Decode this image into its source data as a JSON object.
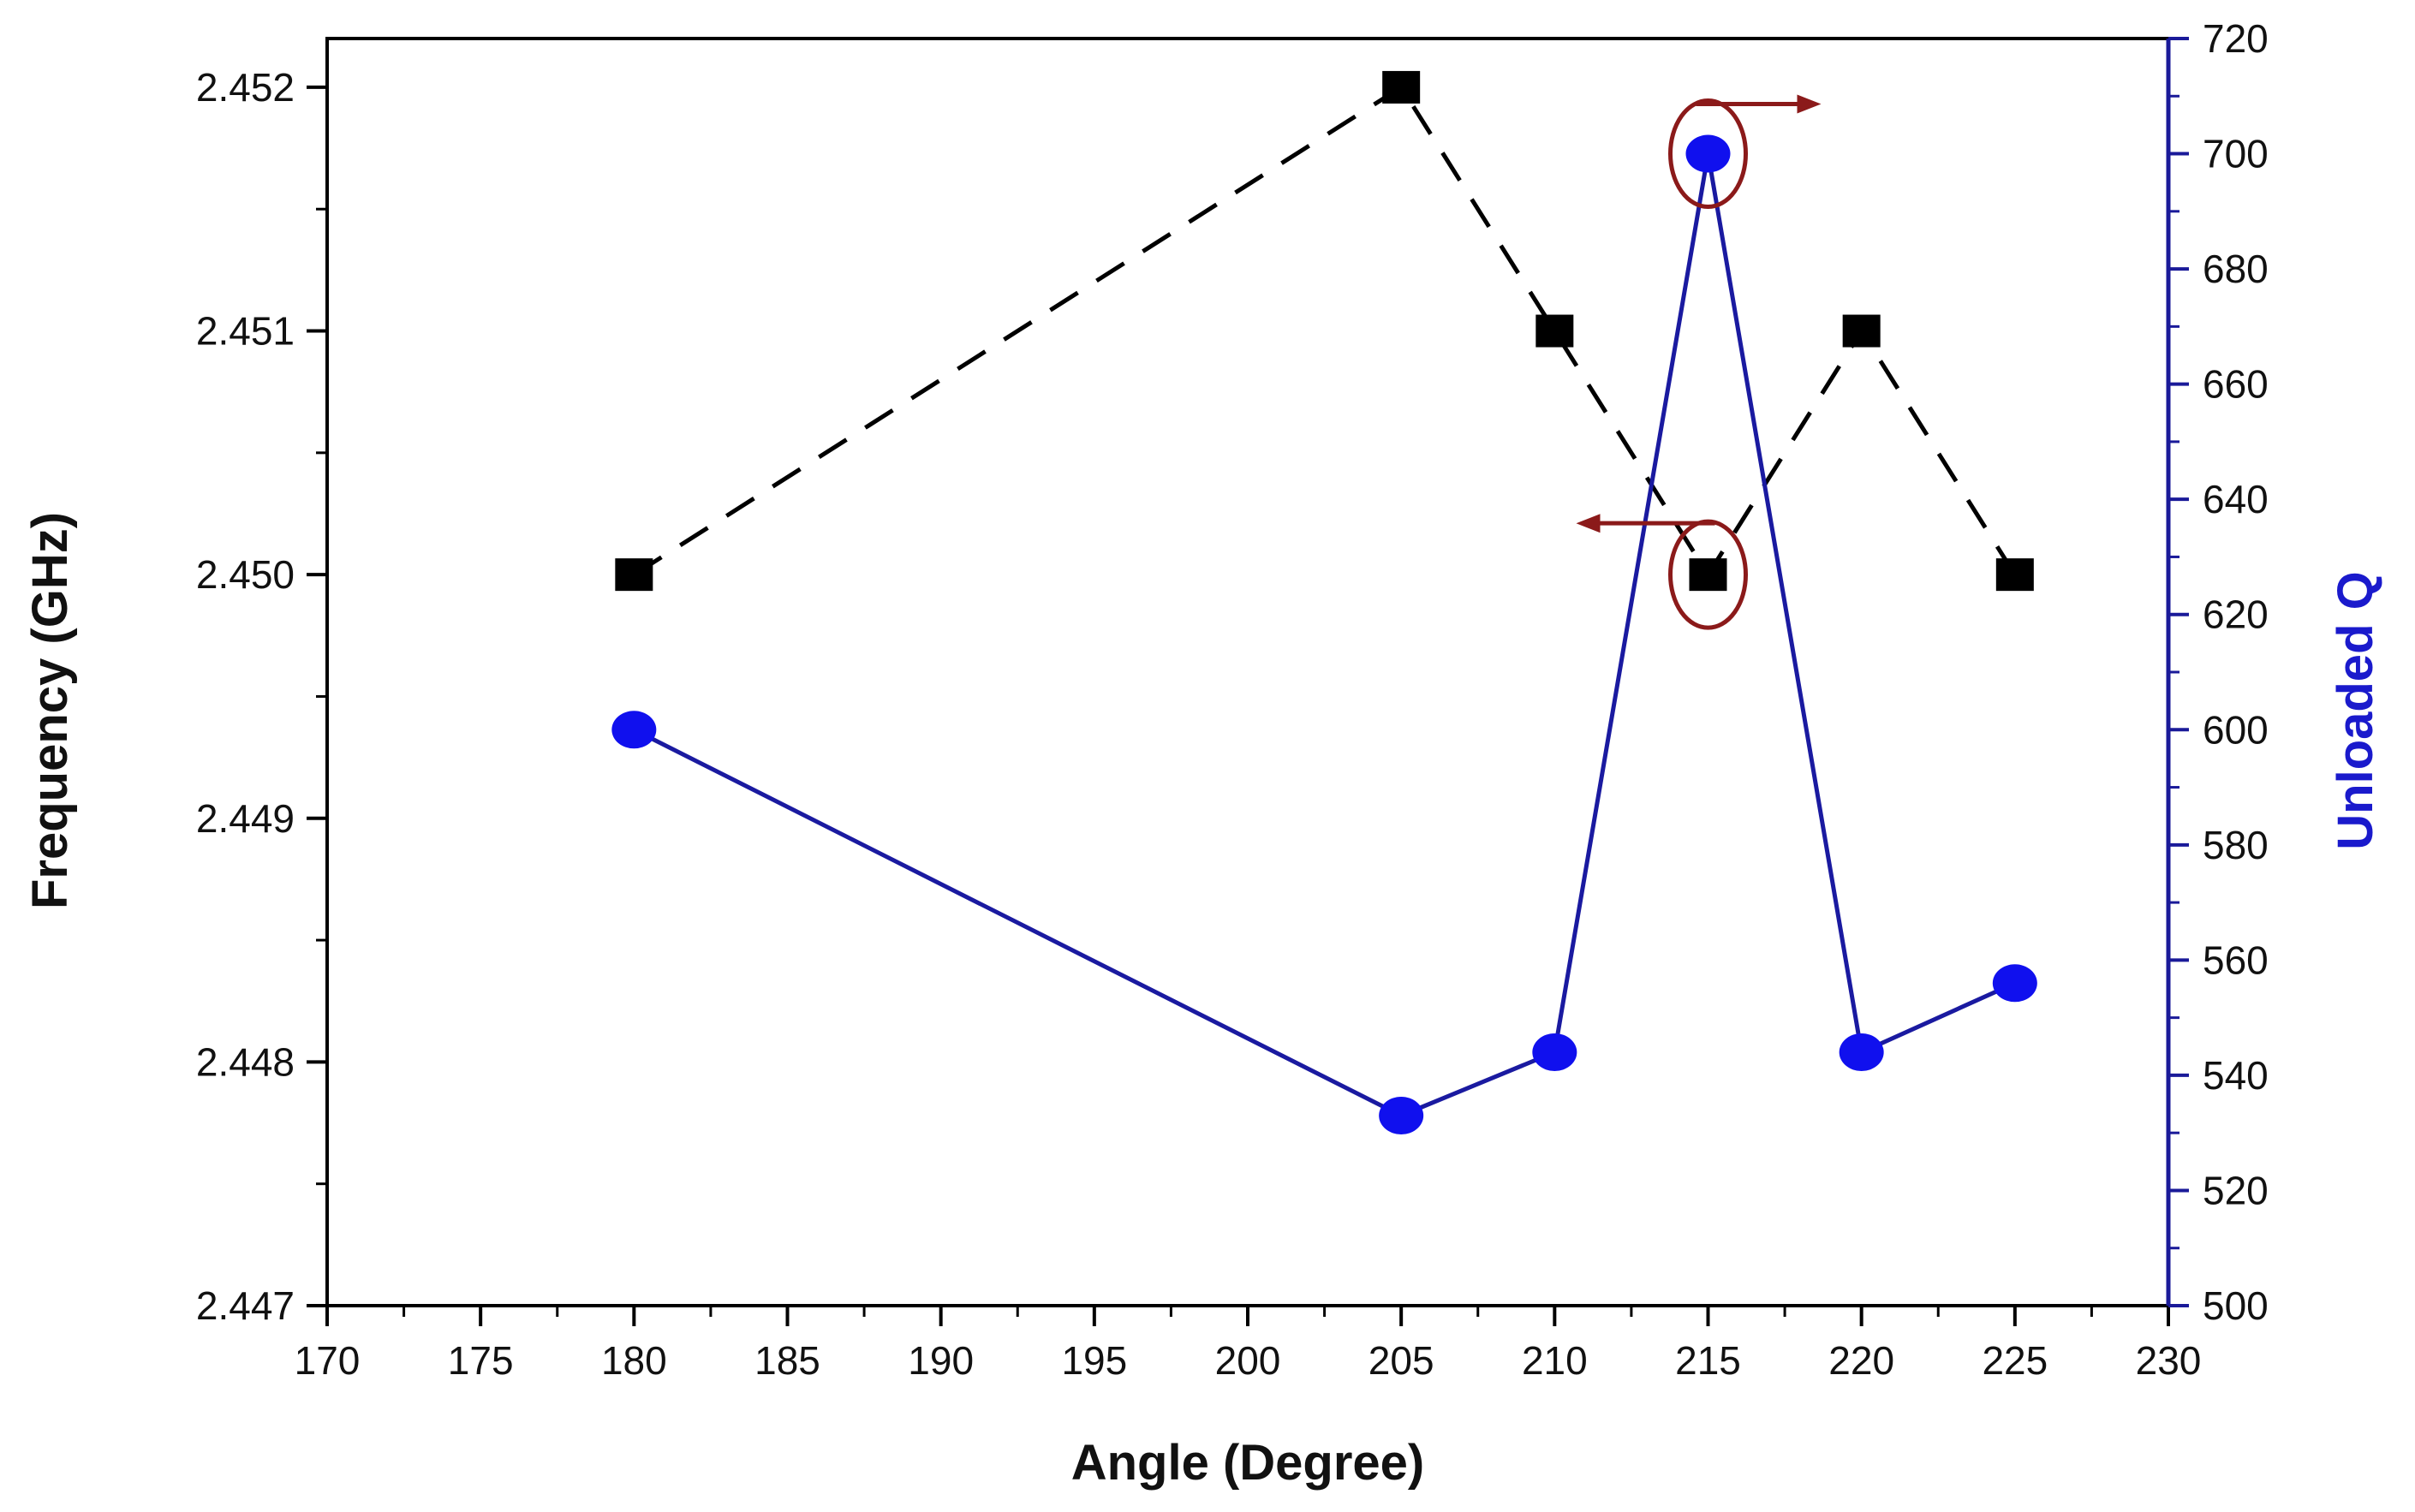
{
  "chart_data": {
    "type": "line",
    "title": "",
    "xlabel": "Angle (Degree)",
    "ylabel": "Frequency (GHz)",
    "y2label": "Unloaded Q",
    "xlim": [
      170,
      230
    ],
    "ylim": [
      2.447,
      2.4522
    ],
    "y2lim": [
      500,
      720
    ],
    "x_ticks": [
      "170",
      "175",
      "180",
      "185",
      "190",
      "195",
      "200",
      "205",
      "210",
      "215",
      "220",
      "225",
      "230"
    ],
    "y_ticks": [
      "2.447",
      "2.448",
      "2.449",
      "2.450",
      "2.451",
      "2.452"
    ],
    "y2_ticks": [
      "500",
      "520",
      "540",
      "560",
      "580",
      "600",
      "620",
      "640",
      "660",
      "680",
      "700",
      "720"
    ],
    "grid": false,
    "series": [
      {
        "axis": "left",
        "marker": "square",
        "line": "dashed",
        "color": "#000000",
        "x": [
          180,
          205,
          210,
          215,
          220,
          225
        ],
        "y": [
          2.45,
          2.452,
          2.451,
          2.45,
          2.451,
          2.45
        ]
      },
      {
        "axis": "right",
        "marker": "circle",
        "line": "solid",
        "color": "#1a1aa0",
        "marker_color": "#1010ee",
        "x": [
          180,
          205,
          210,
          215,
          220,
          225
        ],
        "y": [
          600,
          533,
          544,
          700,
          544,
          556
        ]
      }
    ],
    "annotations": [
      {
        "type": "circle-arrow",
        "target_series": 1,
        "target_point": 3,
        "direction": "right",
        "color": "#8b1a1a"
      },
      {
        "type": "circle-arrow",
        "target_series": 0,
        "target_point": 3,
        "direction": "left",
        "color": "#8b1a1a"
      }
    ],
    "colors": {
      "left_axis": "#000000",
      "right_axis": "#1a1a99",
      "right_title": "#1a1acc",
      "annotation": "#8b1a1a"
    }
  }
}
